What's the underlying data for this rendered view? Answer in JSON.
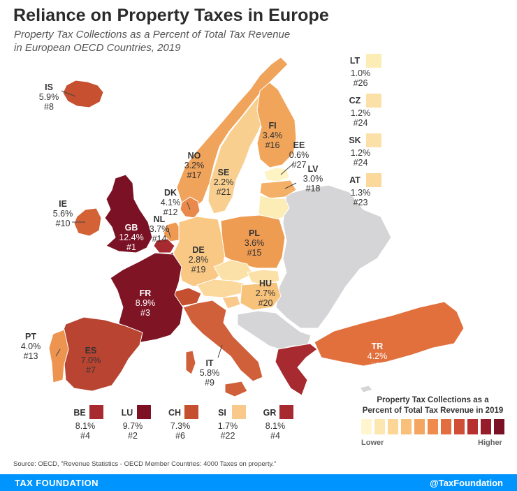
{
  "header": {
    "title": "Reliance on Property Taxes in Europe",
    "subtitle_line1": "Property Tax Collections as a Percent of Total Tax Revenue",
    "subtitle_line2": "in European OECD Countries, 2019"
  },
  "countries": [
    {
      "code": "IS",
      "value": "5.9%",
      "rank": "#8",
      "color": "#c6502f"
    },
    {
      "code": "IE",
      "value": "5.6%",
      "rank": "#10",
      "color": "#d36236"
    },
    {
      "code": "GB",
      "value": "12.4%",
      "rank": "#1",
      "color": "#7a1124"
    },
    {
      "code": "NL",
      "value": "3.7%",
      "rank": "#14",
      "color": "#ee9a52"
    },
    {
      "code": "DK",
      "value": "4.1%",
      "rank": "#12",
      "color": "#e98a4c"
    },
    {
      "code": "NO",
      "value": "3.2%",
      "rank": "#17",
      "color": "#f0a35a"
    },
    {
      "code": "SE",
      "value": "2.2%",
      "rank": "#21",
      "color": "#f8cf8e"
    },
    {
      "code": "FI",
      "value": "3.4%",
      "rank": "#16",
      "color": "#f0a55a"
    },
    {
      "code": "EE",
      "value": "0.6%",
      "rank": "#27",
      "color": "#fdf3c3"
    },
    {
      "code": "LV",
      "value": "3.0%",
      "rank": "#18",
      "color": "#f4b066"
    },
    {
      "code": "LT",
      "value": "1.0%",
      "rank": "#26",
      "color": "#fcedb7"
    },
    {
      "code": "PL",
      "value": "3.6%",
      "rank": "#15",
      "color": "#ef9c53"
    },
    {
      "code": "DE",
      "value": "2.8%",
      "rank": "#19",
      "color": "#f8c884"
    },
    {
      "code": "CZ",
      "value": "1.2%",
      "rank": "#24",
      "color": "#fbe1a8"
    },
    {
      "code": "SK",
      "value": "1.2%",
      "rank": "#24",
      "color": "#fbe1a8"
    },
    {
      "code": "AT",
      "value": "1.3%",
      "rank": "#23",
      "color": "#fbd89b"
    },
    {
      "code": "HU",
      "value": "2.7%",
      "rank": "#20",
      "color": "#f7c27a"
    },
    {
      "code": "FR",
      "value": "8.9%",
      "rank": "#3",
      "color": "#7e1424"
    },
    {
      "code": "CH",
      "value": "7.3%",
      "rank": "#6",
      "color": "#c4502f"
    },
    {
      "code": "IT",
      "value": "5.8%",
      "rank": "#9",
      "color": "#d0603a"
    },
    {
      "code": "ES",
      "value": "7.0%",
      "rank": "#7",
      "color": "#b84431"
    },
    {
      "code": "PT",
      "value": "4.0%",
      "rank": "#13",
      "color": "#ec9450"
    },
    {
      "code": "TR",
      "value": "4.2%",
      "rank": "#11",
      "color": "#e1703d"
    },
    {
      "code": "BE",
      "value": "8.1%",
      "rank": "#4",
      "color": "#a62a2f"
    },
    {
      "code": "LU",
      "value": "9.7%",
      "rank": "#2",
      "color": "#7d1023"
    },
    {
      "code": "SI",
      "value": "1.7%",
      "rank": "#22",
      "color": "#f8c98a"
    },
    {
      "code": "GR",
      "value": "8.1%",
      "rank": "#4",
      "color": "#a62a2f"
    }
  ],
  "legend": {
    "title_line1": "Property Tax Collections as a",
    "title_line2": "Percent of Total Tax Revenue in 2019",
    "lower_label": "Lower",
    "higher_label": "Higher",
    "scale_colors": [
      "#fff6d0",
      "#fde7b1",
      "#fcd696",
      "#f8c07a",
      "#f4a660",
      "#ee8b4d",
      "#e26d3e",
      "#d04d36",
      "#b7302f",
      "#961c29",
      "#7a1124"
    ]
  },
  "non_oecd_color": "#d5d5d7",
  "source": "Source: OECD, \"Revenue Statistics - OECD Member Countries: 4000 Taxes on property.\"",
  "footer": {
    "brand": "TAX FOUNDATION",
    "handle": "@TaxFoundation"
  }
}
